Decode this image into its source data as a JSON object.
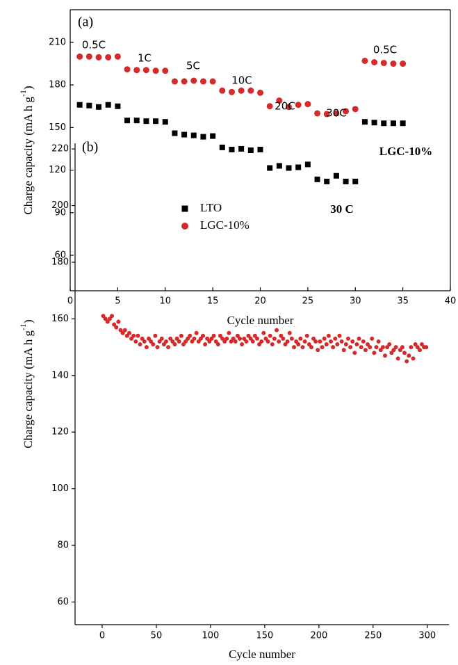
{
  "chart_data": [
    {
      "type": "scatter",
      "panel_label": "(a)",
      "xlabel": "Cycle number",
      "ylabel": [
        "Charge capacity (mA h g",
        "-1",
        ")"
      ],
      "xlim": [
        0,
        40
      ],
      "ylim": [
        35,
        233
      ],
      "xticks": [
        0,
        5,
        10,
        15,
        20,
        25,
        30,
        35,
        40
      ],
      "yticks": [
        60,
        90,
        120,
        150,
        180,
        210
      ],
      "legend": "left",
      "annotations": [
        "0.5C",
        "1C",
        "5C",
        "10C",
        "20C",
        "30C",
        "0.5C"
      ],
      "x": [
        1,
        2,
        3,
        4,
        5,
        6,
        7,
        8,
        9,
        10,
        11,
        12,
        13,
        14,
        15,
        16,
        17,
        18,
        19,
        20,
        21,
        22,
        23,
        24,
        25,
        26,
        27,
        28,
        29,
        30,
        31,
        32,
        33,
        34,
        35
      ],
      "series": [
        {
          "name": "LTO",
          "color": "#000000",
          "marker": "square",
          "values": [
            166,
            165.5,
            164.5,
            166,
            165,
            155,
            155,
            154.5,
            154.5,
            154,
            146,
            145,
            144.5,
            143.5,
            144,
            136,
            134.5,
            135,
            134,
            134.5,
            121.5,
            123,
            121.5,
            122,
            124,
            113.5,
            112,
            116,
            112,
            112,
            154,
            153.5,
            153,
            153,
            153
          ]
        },
        {
          "name": "LGC-10%",
          "color": "#d42a2a",
          "marker": "circle",
          "values": [
            200,
            200,
            199.5,
            199.5,
            200,
            191,
            190.5,
            190.5,
            190,
            190,
            182.5,
            182.5,
            183,
            182.5,
            182.5,
            176,
            175,
            176,
            176,
            174.5,
            165,
            169,
            164.5,
            166,
            166.5,
            160,
            159.5,
            160,
            161.5,
            163,
            197,
            196,
            195.5,
            195,
            195
          ]
        }
      ]
    },
    {
      "type": "scatter",
      "panel_label": "(b)",
      "xlabel": "Cycle number",
      "ylabel": [
        "Charge capacity (mA h g",
        "-1",
        ")"
      ],
      "xlim": [
        -25,
        320
      ],
      "ylim": [
        52,
        222
      ],
      "xticks": [
        0,
        50,
        100,
        150,
        200,
        250,
        300
      ],
      "yticks": [
        60,
        80,
        100,
        120,
        140,
        160,
        180,
        200,
        220
      ],
      "annotations": [
        "30 C"
      ],
      "x": [
        1,
        3,
        5,
        7,
        9,
        11,
        13,
        15,
        17,
        19,
        21,
        23,
        25,
        27,
        29,
        31,
        33,
        35,
        37,
        39,
        41,
        43,
        45,
        47,
        49,
        51,
        53,
        55,
        57,
        59,
        61,
        63,
        65,
        67,
        69,
        71,
        73,
        75,
        77,
        79,
        81,
        83,
        85,
        87,
        89,
        91,
        93,
        95,
        97,
        99,
        101,
        103,
        105,
        107,
        109,
        111,
        113,
        115,
        117,
        119,
        121,
        123,
        125,
        127,
        129,
        131,
        133,
        135,
        137,
        139,
        141,
        143,
        145,
        147,
        149,
        151,
        153,
        155,
        157,
        159,
        161,
        163,
        165,
        167,
        169,
        171,
        173,
        175,
        177,
        179,
        181,
        183,
        185,
        187,
        189,
        191,
        193,
        195,
        197,
        199,
        201,
        203,
        205,
        207,
        209,
        211,
        213,
        215,
        217,
        219,
        221,
        223,
        225,
        227,
        229,
        231,
        233,
        235,
        237,
        239,
        241,
        243,
        245,
        247,
        249,
        251,
        253,
        255,
        257,
        259,
        261,
        263,
        265,
        267,
        269,
        271,
        273,
        275,
        277,
        279,
        281,
        283,
        285,
        287,
        289,
        291,
        293,
        295,
        297,
        299
      ],
      "series": [
        {
          "name": "LGC-10%",
          "color": "#d42a2a",
          "marker": "circle",
          "values": [
            161,
            160,
            159,
            160,
            161,
            158,
            157,
            159,
            156,
            155,
            156,
            154,
            155,
            153,
            154,
            152,
            154,
            151,
            153,
            152,
            150,
            153,
            152,
            151,
            154,
            150,
            152,
            153,
            151,
            152,
            150,
            153,
            152,
            151,
            153,
            152,
            154,
            151,
            152,
            153,
            154,
            152,
            153,
            155,
            152,
            153,
            154,
            151,
            153,
            152,
            153,
            154,
            152,
            151,
            154,
            153,
            152,
            153,
            155,
            152,
            153,
            152,
            154,
            153,
            151,
            153,
            152,
            154,
            153,
            152,
            154,
            153,
            151,
            152,
            155,
            153,
            152,
            154,
            151,
            153,
            156,
            152,
            154,
            153,
            151,
            152,
            155,
            153,
            150,
            152,
            151,
            153,
            150,
            152,
            154,
            151,
            150,
            153,
            152,
            149,
            152,
            150,
            153,
            151,
            154,
            152,
            150,
            153,
            151,
            154,
            152,
            149,
            151,
            153,
            150,
            152,
            148,
            151,
            153,
            150,
            152,
            149,
            151,
            150,
            153,
            148,
            150,
            152,
            149,
            150,
            147,
            150,
            151,
            148,
            149,
            150,
            146,
            149,
            150,
            148,
            145,
            147,
            150,
            146,
            151,
            150,
            149,
            151,
            150,
            150
          ]
        }
      ]
    }
  ]
}
